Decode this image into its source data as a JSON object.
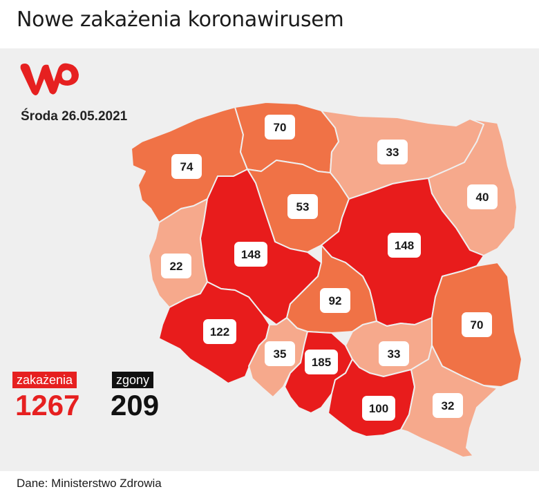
{
  "title": "Nowe zakażenia koronawirusem",
  "date": "Środa 26.05.2021",
  "source": "Dane: Ministerstwo Zdrowia",
  "colors": {
    "high": "#e81c1c",
    "medium": "#f07246",
    "low": "#f6a98c",
    "label_bg": "#ffffff",
    "logo": "#e62020"
  },
  "legend": {
    "cases_label": "zakażenia",
    "cases_value": "1267",
    "deaths_label": "zgony",
    "deaths_value": "209"
  },
  "regions": [
    {
      "id": "zachodniopomorskie",
      "value": "74",
      "level": "medium"
    },
    {
      "id": "pomorskie",
      "value": "70",
      "level": "medium"
    },
    {
      "id": "warminsko-mazurskie",
      "value": "33",
      "level": "low"
    },
    {
      "id": "podlaskie",
      "value": "40",
      "level": "low"
    },
    {
      "id": "kujawsko-pomorskie",
      "value": "53",
      "level": "medium"
    },
    {
      "id": "lubuskie",
      "value": "22",
      "level": "low"
    },
    {
      "id": "wielkopolskie",
      "value": "148",
      "level": "high"
    },
    {
      "id": "mazowieckie",
      "value": "148",
      "level": "high"
    },
    {
      "id": "lodzkie",
      "value": "92",
      "level": "medium"
    },
    {
      "id": "dolnoslaskie",
      "value": "122",
      "level": "high"
    },
    {
      "id": "lubelskie",
      "value": "70",
      "level": "medium"
    },
    {
      "id": "opolskie",
      "value": "35",
      "level": "low"
    },
    {
      "id": "slaskie",
      "value": "185",
      "level": "high"
    },
    {
      "id": "swietokrzyskie",
      "value": "33",
      "level": "low"
    },
    {
      "id": "malopolskie",
      "value": "100",
      "level": "high"
    },
    {
      "id": "podkarpackie",
      "value": "32",
      "level": "low"
    }
  ]
}
